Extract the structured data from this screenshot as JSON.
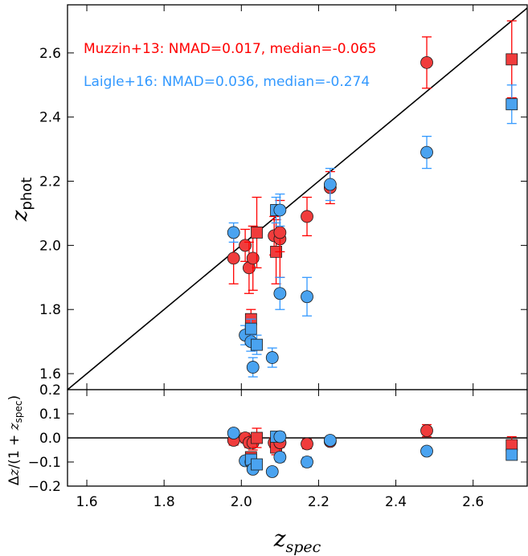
{
  "colors": {
    "muzzin": "#ff0000",
    "muzzin_marker": "#f03c3c",
    "laigle": "#3399ff",
    "laigle_marker": "#4aa3f0",
    "axis": "#000000"
  },
  "chart_data": [
    {
      "type": "scatter",
      "panel": "top",
      "xlabel": "z_spec",
      "ylabel": "z_phot",
      "xlim": [
        1.55,
        2.74
      ],
      "ylim": [
        1.55,
        2.75
      ],
      "xticks": [],
      "yticks": [
        "1.6",
        "1.8",
        "2.0",
        "2.2",
        "2.4",
        "2.6"
      ],
      "reference_line": "y = x",
      "annotations": [
        {
          "text": "Muzzin+13: NMAD=0.017, median=-0.065",
          "color": "#ff0000"
        },
        {
          "text": "Laigle+16: NMAD=0.036, median=-0.274",
          "color": "#3399ff"
        }
      ],
      "series": [
        {
          "key": "muzzin",
          "points": [
            {
              "x": 1.98,
              "y": 1.96,
              "err": 0.08,
              "marker": "circle"
            },
            {
              "x": 2.01,
              "y": 2.0,
              "err": 0.05,
              "marker": "circle"
            },
            {
              "x": 2.02,
              "y": 1.93,
              "err": 0.08,
              "marker": "circle"
            },
            {
              "x": 2.025,
              "y": 1.77,
              "err": 0.03,
              "marker": "square"
            },
            {
              "x": 2.03,
              "y": 1.96,
              "err": 0.1,
              "marker": "circle"
            },
            {
              "x": 2.04,
              "y": 2.04,
              "err": 0.11,
              "marker": "square"
            },
            {
              "x": 2.085,
              "y": 2.03,
              "err": 0.06,
              "marker": "circle"
            },
            {
              "x": 2.09,
              "y": 1.98,
              "err": 0.1,
              "marker": "square"
            },
            {
              "x": 2.1,
              "y": 2.02,
              "err": 0.12,
              "marker": "circle"
            },
            {
              "x": 2.1,
              "y": 2.04,
              "err": 0.06,
              "marker": "circle"
            },
            {
              "x": 2.17,
              "y": 2.09,
              "err": 0.06,
              "marker": "circle"
            },
            {
              "x": 2.23,
              "y": 2.18,
              "err": 0.05,
              "marker": "circle"
            },
            {
              "x": 2.48,
              "y": 2.57,
              "err": 0.08,
              "marker": "circle"
            },
            {
              "x": 2.7,
              "y": 2.58,
              "err": 0.12,
              "marker": "square"
            }
          ]
        },
        {
          "key": "laigle",
          "points": [
            {
              "x": 1.98,
              "y": 2.04,
              "err": 0.03,
              "marker": "circle"
            },
            {
              "x": 2.01,
              "y": 1.72,
              "err": 0.03,
              "marker": "circle"
            },
            {
              "x": 2.025,
              "y": 1.7,
              "err": 0.03,
              "marker": "circle"
            },
            {
              "x": 2.025,
              "y": 1.74,
              "err": 0.03,
              "marker": "square"
            },
            {
              "x": 2.03,
              "y": 1.62,
              "err": 0.03,
              "marker": "circle"
            },
            {
              "x": 2.04,
              "y": 1.69,
              "err": 0.03,
              "marker": "square"
            },
            {
              "x": 2.08,
              "y": 1.65,
              "err": 0.03,
              "marker": "circle"
            },
            {
              "x": 2.09,
              "y": 2.11,
              "err": 0.04,
              "marker": "square"
            },
            {
              "x": 2.1,
              "y": 2.11,
              "err": 0.05,
              "marker": "circle"
            },
            {
              "x": 2.1,
              "y": 1.85,
              "err": 0.05,
              "marker": "circle"
            },
            {
              "x": 2.17,
              "y": 1.84,
              "err": 0.06,
              "marker": "circle"
            },
            {
              "x": 2.23,
              "y": 2.19,
              "err": 0.05,
              "marker": "circle"
            },
            {
              "x": 2.48,
              "y": 2.29,
              "err": 0.05,
              "marker": "circle"
            },
            {
              "x": 2.7,
              "y": 2.44,
              "err": 0.06,
              "marker": "square"
            }
          ]
        }
      ]
    },
    {
      "type": "scatter",
      "panel": "bottom",
      "xlabel": "z_spec",
      "ylabel": "Δz/(1+z_spec)",
      "xlim": [
        1.55,
        2.74
      ],
      "ylim": [
        -0.2,
        0.2
      ],
      "xticks": [
        "1.6",
        "1.8",
        "2.0",
        "2.2",
        "2.4",
        "2.6"
      ],
      "yticks": [
        "−0.2",
        "−0.1",
        "0.0",
        "0.1",
        "0.2"
      ],
      "reference_line": "y = 0",
      "series": [
        {
          "key": "muzzin",
          "points": [
            {
              "x": 1.98,
              "y": -0.01,
              "err": 0.02,
              "marker": "circle"
            },
            {
              "x": 2.01,
              "y": 0.0,
              "err": 0.02,
              "marker": "circle"
            },
            {
              "x": 2.02,
              "y": -0.02,
              "err": 0.02,
              "marker": "circle"
            },
            {
              "x": 2.025,
              "y": -0.08,
              "err": 0.02,
              "marker": "square"
            },
            {
              "x": 2.03,
              "y": -0.02,
              "err": 0.03,
              "marker": "circle"
            },
            {
              "x": 2.04,
              "y": 0.0,
              "err": 0.04,
              "marker": "square"
            },
            {
              "x": 2.085,
              "y": -0.02,
              "err": 0.02,
              "marker": "circle"
            },
            {
              "x": 2.09,
              "y": -0.04,
              "err": 0.03,
              "marker": "square"
            },
            {
              "x": 2.1,
              "y": -0.02,
              "err": 0.04,
              "marker": "circle"
            },
            {
              "x": 2.1,
              "y": -0.02,
              "err": 0.02,
              "marker": "circle"
            },
            {
              "x": 2.17,
              "y": -0.025,
              "err": 0.02,
              "marker": "circle"
            },
            {
              "x": 2.23,
              "y": -0.015,
              "err": 0.015,
              "marker": "circle"
            },
            {
              "x": 2.48,
              "y": 0.03,
              "err": 0.025,
              "marker": "circle"
            },
            {
              "x": 2.7,
              "y": -0.03,
              "err": 0.035,
              "marker": "square"
            }
          ]
        },
        {
          "key": "laigle",
          "points": [
            {
              "x": 1.98,
              "y": 0.02,
              "err": 0.01,
              "marker": "circle"
            },
            {
              "x": 2.01,
              "y": -0.095,
              "err": 0.01,
              "marker": "circle"
            },
            {
              "x": 2.025,
              "y": -0.1,
              "err": 0.01,
              "marker": "circle"
            },
            {
              "x": 2.025,
              "y": -0.09,
              "err": 0.01,
              "marker": "square"
            },
            {
              "x": 2.03,
              "y": -0.13,
              "err": 0.01,
              "marker": "circle"
            },
            {
              "x": 2.04,
              "y": -0.11,
              "err": 0.01,
              "marker": "square"
            },
            {
              "x": 2.08,
              "y": -0.14,
              "err": 0.01,
              "marker": "circle"
            },
            {
              "x": 2.09,
              "y": 0.005,
              "err": 0.015,
              "marker": "square"
            },
            {
              "x": 2.1,
              "y": 0.005,
              "err": 0.02,
              "marker": "circle"
            },
            {
              "x": 2.1,
              "y": -0.08,
              "err": 0.02,
              "marker": "circle"
            },
            {
              "x": 2.17,
              "y": -0.1,
              "err": 0.02,
              "marker": "circle"
            },
            {
              "x": 2.23,
              "y": -0.01,
              "err": 0.015,
              "marker": "circle"
            },
            {
              "x": 2.48,
              "y": -0.055,
              "err": 0.015,
              "marker": "circle"
            },
            {
              "x": 2.7,
              "y": -0.07,
              "err": 0.02,
              "marker": "square"
            }
          ]
        }
      ]
    }
  ]
}
